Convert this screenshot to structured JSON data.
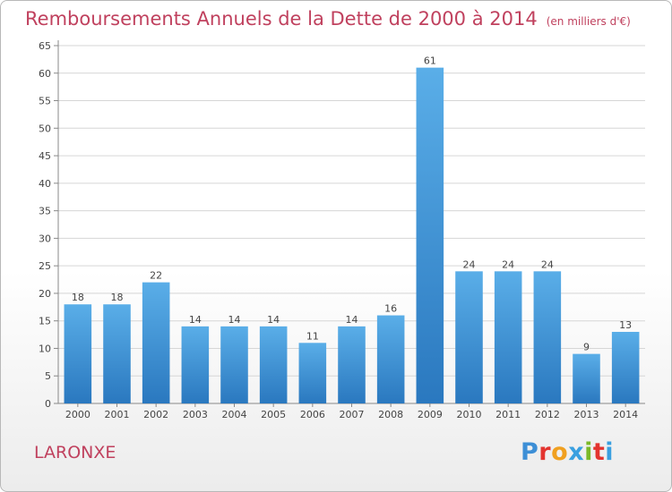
{
  "header": {
    "title": "Remboursements Annuels de la Dette de 2000 à 2014",
    "unit": "(en milliers d'€)"
  },
  "footer": {
    "commune": "LARONXE",
    "logo_letters": [
      "P",
      "r",
      "o",
      "x",
      "i",
      "t",
      "i"
    ],
    "logo_colors": [
      "#3d8fd6",
      "#e3342f",
      "#f0a020",
      "#3aa0e0",
      "#7bb928",
      "#e3342f",
      "#3aa0e0"
    ]
  },
  "chart_data": {
    "type": "bar",
    "categories": [
      "2000",
      "2001",
      "2002",
      "2003",
      "2004",
      "2005",
      "2006",
      "2007",
      "2008",
      "2009",
      "2010",
      "2011",
      "2012",
      "2013",
      "2014"
    ],
    "values": [
      18,
      18,
      22,
      14,
      14,
      14,
      11,
      14,
      16,
      61,
      24,
      24,
      24,
      9,
      13
    ],
    "ylim": [
      0,
      65
    ],
    "yticks": [
      0,
      5,
      10,
      15,
      20,
      25,
      30,
      35,
      40,
      45,
      50,
      55,
      60,
      65
    ],
    "grid": true,
    "data_labels": true,
    "bar_color_top": "#5aaee8",
    "bar_color_bottom": "#2a78bf"
  }
}
